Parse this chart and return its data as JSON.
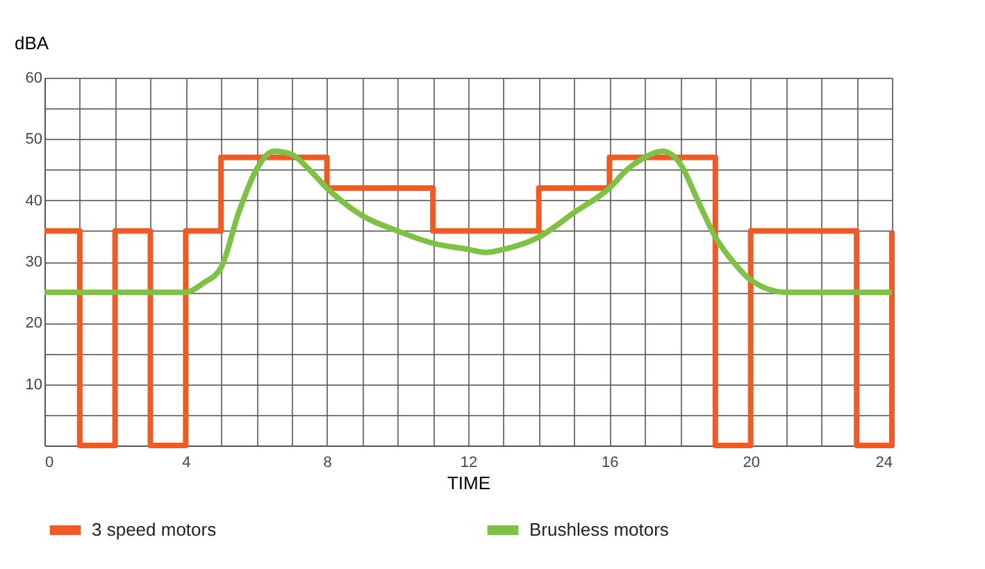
{
  "chart_data": {
    "type": "line",
    "xlabel": "TIME",
    "ylabel": "dBA",
    "xlim": [
      0,
      24
    ],
    "ylim": [
      0,
      60
    ],
    "xticks": [
      0,
      {
        "value": 1,
        "label": null
      },
      {
        "value": 2,
        "label": null
      },
      {
        "value": 3,
        "label": null
      },
      4,
      {
        "value": 5,
        "label": null
      },
      {
        "value": 6,
        "label": null
      },
      {
        "value": 7,
        "label": null
      },
      8,
      {
        "value": 9,
        "label": null
      },
      {
        "value": 10,
        "label": null
      },
      {
        "value": 11,
        "label": null
      },
      12,
      {
        "value": 13,
        "label": null
      },
      {
        "value": 14,
        "label": null
      },
      {
        "value": 15,
        "label": null
      },
      16,
      {
        "value": 17,
        "label": null
      },
      {
        "value": 18,
        "label": null
      },
      {
        "value": 19,
        "label": null
      },
      20,
      {
        "value": 21,
        "label": null
      },
      {
        "value": 22,
        "label": null
      },
      {
        "value": 23,
        "label": null
      },
      24
    ],
    "yticks": [
      {
        "value": 5,
        "label": null
      },
      10,
      {
        "value": 15,
        "label": null
      },
      20,
      {
        "value": 25,
        "label": null
      },
      30,
      {
        "value": 35,
        "label": null
      },
      40,
      {
        "value": 45,
        "label": null
      },
      50,
      {
        "value": 55,
        "label": null
      },
      60
    ],
    "grid": true,
    "legend": "bottom",
    "line_style": "solid",
    "marker": "none",
    "series": [
      {
        "name": "3 speed motors",
        "color": "#f05a24",
        "type": "step",
        "x": [
          0,
          1,
          2,
          3,
          4,
          5,
          8,
          11,
          14,
          16,
          19,
          20,
          23,
          24
        ],
        "values": [
          35,
          0,
          35,
          0,
          35,
          47,
          42,
          35,
          42,
          47,
          0,
          35,
          0,
          35
        ]
      },
      {
        "name": "Brushless motors",
        "color": "#7dc242",
        "type": "line",
        "x": [
          0,
          4,
          4.5,
          5,
          5.5,
          6,
          6.5,
          7,
          7.5,
          8,
          9,
          10,
          11,
          12,
          12.5,
          13,
          14,
          15,
          16,
          16.5,
          17,
          17.5,
          18,
          18.5,
          19,
          19.5,
          20,
          21,
          24
        ],
        "values": [
          25,
          25,
          26.5,
          29,
          38,
          45,
          48,
          47.5,
          45,
          42,
          37.5,
          35,
          33,
          32,
          31.5,
          32,
          34,
          38,
          42,
          45,
          47,
          48,
          46,
          40,
          34,
          30,
          27,
          25,
          25
        ]
      }
    ]
  }
}
